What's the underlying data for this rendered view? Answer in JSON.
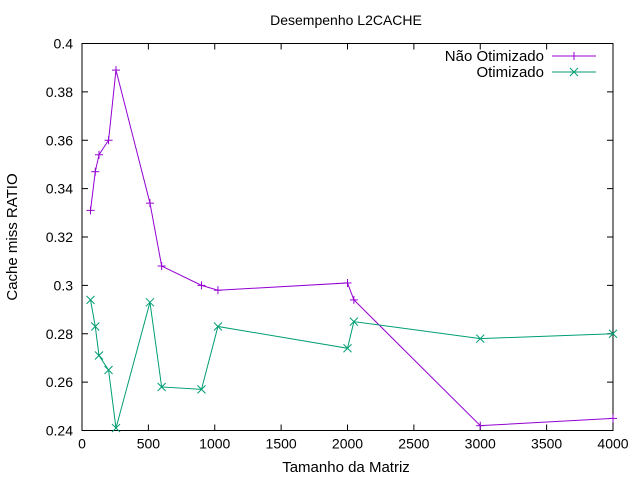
{
  "chart_data": {
    "type": "line",
    "title": "Desempenho L2CACHE",
    "xlabel": "Tamanho da Matriz",
    "ylabel": "Cache miss RATIO",
    "xlim": [
      0,
      4000
    ],
    "ylim": [
      0.24,
      0.4
    ],
    "x_ticks": [
      0,
      500,
      1000,
      1500,
      2000,
      2500,
      3000,
      3500,
      4000
    ],
    "y_ticks": [
      0.24,
      0.26,
      0.28,
      0.3,
      0.32,
      0.34,
      0.36,
      0.38,
      0.4
    ],
    "y_tick_labels": [
      "0.24",
      "0.26",
      "0.28",
      "0.3",
      "0.32",
      "0.34",
      "0.36",
      "0.38",
      "0.4"
    ],
    "grid": false,
    "legend_position": "top-right",
    "series": [
      {
        "name": "Não Otimizado",
        "color": "#9400d3",
        "marker": "plus",
        "points": [
          [
            64,
            0.331
          ],
          [
            100,
            0.347
          ],
          [
            128,
            0.354
          ],
          [
            200,
            0.36
          ],
          [
            256,
            0.389
          ],
          [
            512,
            0.334
          ],
          [
            600,
            0.308
          ],
          [
            900,
            0.3
          ],
          [
            1024,
            0.298
          ],
          [
            2000,
            0.301
          ],
          [
            2048,
            0.294
          ],
          [
            3000,
            0.242
          ],
          [
            4000,
            0.245
          ]
        ]
      },
      {
        "name": "Otimizado",
        "color": "#009e73",
        "marker": "cross",
        "points": [
          [
            64,
            0.294
          ],
          [
            100,
            0.283
          ],
          [
            128,
            0.271
          ],
          [
            200,
            0.265
          ],
          [
            256,
            0.241
          ],
          [
            512,
            0.293
          ],
          [
            600,
            0.258
          ],
          [
            900,
            0.257
          ],
          [
            1024,
            0.283
          ],
          [
            2000,
            0.274
          ],
          [
            2048,
            0.285
          ],
          [
            3000,
            0.278
          ],
          [
            4000,
            0.28
          ]
        ]
      }
    ]
  }
}
